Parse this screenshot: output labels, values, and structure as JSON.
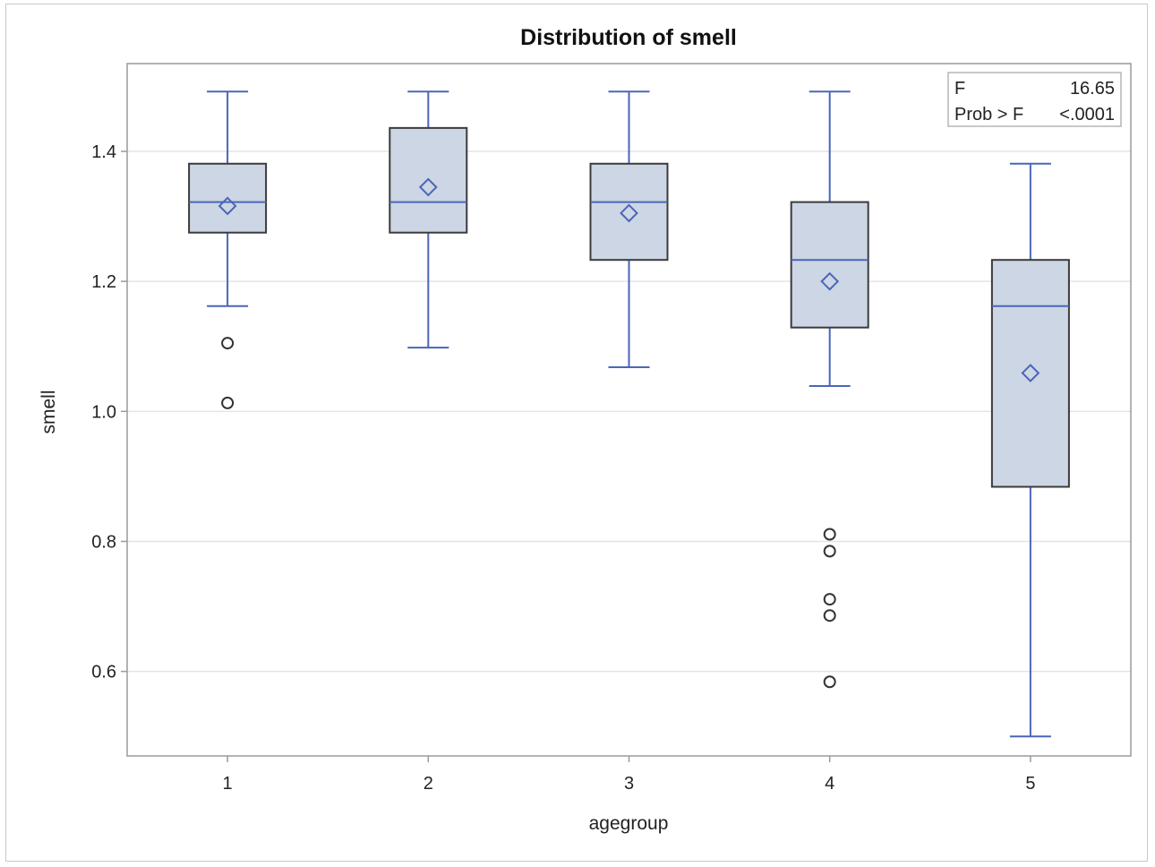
{
  "chart_data": {
    "type": "box",
    "title": "Distribution of smell",
    "xlabel": "agegroup",
    "ylabel": "smell",
    "categories": [
      "1",
      "2",
      "3",
      "4",
      "5"
    ],
    "ylim": [
      0.47,
      1.535
    ],
    "yticks": [
      0.6,
      0.8,
      1.0,
      1.2,
      1.4
    ],
    "ytick_labels": [
      "0.6",
      "0.8",
      "1.0",
      "1.2",
      "1.4"
    ],
    "grid": "horizontal",
    "boxes": [
      {
        "category": "1",
        "whisker_low": 1.162,
        "q1": 1.275,
        "median": 1.322,
        "q3": 1.381,
        "whisker_high": 1.492,
        "mean": 1.316,
        "outliers": [
          1.105,
          1.013
        ]
      },
      {
        "category": "2",
        "whisker_low": 1.098,
        "q1": 1.275,
        "median": 1.322,
        "q3": 1.436,
        "whisker_high": 1.492,
        "mean": 1.345,
        "outliers": []
      },
      {
        "category": "3",
        "whisker_low": 1.068,
        "q1": 1.233,
        "median": 1.322,
        "q3": 1.381,
        "whisker_high": 1.492,
        "mean": 1.305,
        "outliers": []
      },
      {
        "category": "4",
        "whisker_low": 1.039,
        "q1": 1.129,
        "median": 1.233,
        "q3": 1.322,
        "whisker_high": 1.492,
        "mean": 1.2,
        "outliers": [
          0.811,
          0.785,
          0.711,
          0.686,
          0.584
        ]
      },
      {
        "category": "5",
        "whisker_low": 0.5,
        "q1": 0.884,
        "median": 1.162,
        "q3": 1.233,
        "whisker_high": 1.381,
        "mean": 1.059,
        "outliers": []
      }
    ],
    "stats_box": {
      "position": "top-right",
      "rows": [
        {
          "label": "F",
          "value": "16.65"
        },
        {
          "label": "Prob > F",
          "value": "<.0001"
        }
      ]
    },
    "colors": {
      "box_fill": "#cdd6e4",
      "box_edge": "#3b3b3b",
      "whisker": "#4a66b8",
      "median": "#4a66b8",
      "mean_marker": "#4a66b8",
      "outlier": "#333333",
      "grid": "#e4e4e4",
      "axis": "#9a9a9a"
    }
  }
}
